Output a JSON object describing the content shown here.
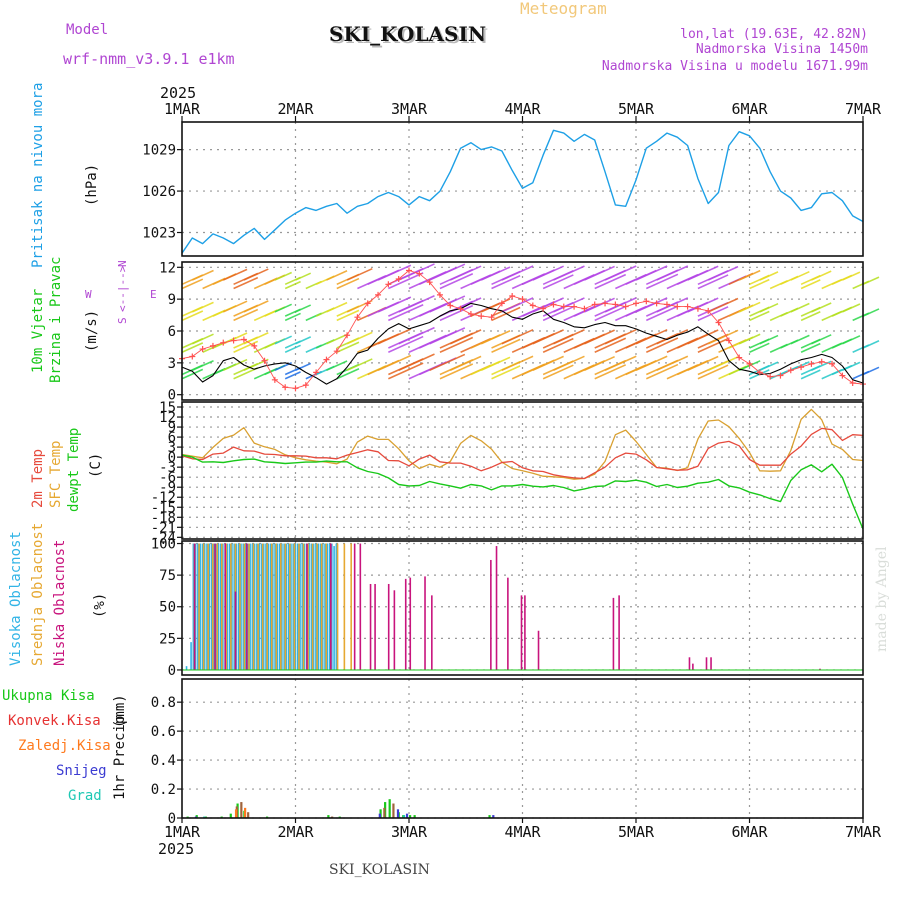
{
  "header": {
    "model_label": "Model",
    "model_name": "wrf-nmm_v3.9.1 e1km",
    "title": "SKI_KOLASIN",
    "subtitle": "Meteogram",
    "lonlat": "lon,lat (19.63E, 42.82N)",
    "altitude": "Nadmorska Visina 1450m",
    "model_altitude": "Nadmorska Visina u modelu 1671.99m"
  },
  "footer": {
    "station": "SKI_KOLASIN",
    "credit": "made by Angel"
  },
  "colors": {
    "pressure": "#1ea0e6",
    "temp2m": "#e64a3c",
    "sfc_temp": "#d9a030",
    "dewpt": "#19c819",
    "high_cloud": "#32b4e6",
    "mid_cloud": "#e6a832",
    "low_cloud": "#c8147d",
    "wind_speed": "#000000",
    "gust": "#ff5050",
    "total_rain": "#19c819",
    "conv_rain": "#e63232",
    "freezing": "#ff7a1e",
    "snow": "#3c3cd2",
    "hail": "#1ec8b4",
    "wind_axis": "#b046d2"
  },
  "chart_data": [
    {
      "type": "line",
      "panel": "pressure",
      "ylabel": "Pritisak na nivou mora",
      "unit": "(hPa)",
      "x_top_year": "2025",
      "x_tick_labels": [
        "1MAR",
        "2MAR",
        "3MAR",
        "4MAR",
        "5MAR",
        "6MAR",
        "7MAR"
      ],
      "y_ticks": [
        1023,
        1026,
        1029
      ],
      "ylim": [
        1021.3,
        1031
      ],
      "series": [
        {
          "values": [
            1021.5,
            1022.6,
            1022.2,
            1022.9,
            1022.6,
            1022.2,
            1022.8,
            1023.3,
            1022.5,
            1023.2,
            1023.9,
            1024.4,
            1024.8,
            1024.6,
            1024.9,
            1025.1,
            1024.4,
            1024.9,
            1025.1,
            1025.6,
            1025.9,
            1025.6,
            1025.0,
            1025.6,
            1025.3,
            1026.0,
            1027.4,
            1029.1,
            1029.5,
            1029.0,
            1029.2,
            1028.9,
            1027.5,
            1026.2,
            1026.6,
            1028.6,
            1030.4,
            1030.2,
            1029.6,
            1030.1,
            1029.7,
            1027.4,
            1025.0,
            1024.9,
            1026.8,
            1029.1,
            1029.6,
            1030.2,
            1029.9,
            1029.3,
            1026.9,
            1025.1,
            1025.9,
            1029.3,
            1030.3,
            1030.0,
            1029.1,
            1027.4,
            1026.0,
            1025.5,
            1024.6,
            1024.8,
            1025.8,
            1025.9,
            1025.3,
            1024.2,
            1023.8
          ]
        }
      ]
    },
    {
      "type": "line",
      "panel": "wind",
      "ylabel": [
        "10m Vjetar",
        "Brzina i Pravac"
      ],
      "unit": "(m/s)",
      "compass": [
        "N",
        "W",
        "E",
        "S"
      ],
      "y_ticks": [
        0,
        3,
        6,
        9,
        12
      ],
      "ylim": [
        -0.5,
        12.5
      ],
      "series": [
        {
          "values": [
            2.6,
            2.2,
            1.2,
            1.8,
            3.2,
            3.5,
            2.8,
            2.4,
            2.7,
            2.9,
            3.0,
            2.7,
            2.1,
            1.6,
            1.0,
            1.5,
            2.6,
            3.9,
            4.2,
            5.3,
            6.2,
            6.7,
            6.2,
            6.5,
            6.8,
            7.4,
            7.9,
            8.1,
            8.6,
            8.4,
            8.1,
            7.9,
            7.3,
            7.1,
            7.6,
            7.9,
            7.1,
            6.8,
            6.4,
            6.3,
            6.6,
            6.8,
            6.5,
            6.5,
            6.2,
            5.8,
            5.5,
            5.2,
            5.6,
            5.9,
            6.4,
            5.7,
            5.1,
            3.2,
            2.4,
            2.2,
            1.9,
            2.0,
            2.4,
            2.9,
            3.3,
            3.5,
            3.8,
            3.5,
            2.7,
            1.4,
            1.1
          ]
        },
        {
          "values": [
            3.4,
            3.6,
            4.3,
            4.6,
            4.9,
            5.1,
            5.2,
            4.6,
            3.2,
            1.4,
            0.7,
            0.6,
            0.9,
            2.1,
            3.3,
            4.1,
            5.6,
            7.3,
            8.6,
            9.4,
            10.4,
            10.9,
            11.7,
            11.4,
            10.6,
            9.4,
            8.4,
            8.1,
            7.6,
            7.4,
            7.3,
            8.6,
            9.3,
            9.0,
            8.4,
            8.1,
            8.5,
            8.3,
            8.3,
            8.1,
            8.5,
            8.6,
            8.5,
            8.3,
            8.6,
            8.8,
            8.6,
            8.5,
            8.3,
            8.3,
            8.1,
            7.9,
            6.8,
            5.1,
            3.5,
            2.9,
            2.1,
            1.7,
            1.8,
            2.3,
            2.6,
            2.9,
            3.1,
            2.9,
            1.8,
            1.1,
            1.0
          ]
        }
      ]
    },
    {
      "type": "line",
      "panel": "temperature",
      "ylabel": [
        "2m Temp",
        "SFC Temp",
        "dewpt Temp"
      ],
      "unit": "(C)",
      "y_ticks": [
        15,
        12,
        9,
        6,
        3,
        0,
        -3,
        -6,
        -9,
        -12,
        -15,
        -18,
        -21,
        -24
      ],
      "ylim": [
        -24.5,
        16.5
      ],
      "series": [
        {
          "values": [
            0.4,
            -0.5,
            -0.7,
            0.9,
            1.2,
            3.0,
            1.9,
            1.8,
            0.9,
            0.8,
            0.4,
            0.4,
            0.3,
            -0.2,
            -0.2,
            -0.5,
            0.6,
            1.4,
            2.2,
            1.6,
            -1.0,
            -1.1,
            -2.6,
            -0.6,
            0.6,
            -1.4,
            -1.8,
            -1.8,
            -2.7,
            -4.1,
            -3.0,
            -1.6,
            -1.3,
            -3.2,
            -4.1,
            -4.3,
            -5.3,
            -5.8,
            -6.2,
            -6.4,
            -4.7,
            -3.0,
            -0.2,
            1.2,
            0.9,
            -0.8,
            -3.1,
            -3.5,
            -3.9,
            -3.8,
            -2.7,
            2.6,
            4.2,
            4.7,
            3.4,
            -0.7,
            -2.4,
            -2.4,
            -2.4,
            0.9,
            3.3,
            6.8,
            8.6,
            8.2,
            5.0,
            6.7,
            6.5
          ]
        },
        {
          "values": [
            0.8,
            0.3,
            -0.2,
            2.9,
            5.6,
            6.6,
            8.8,
            4.2,
            3.1,
            2.3,
            0.7,
            -0.2,
            -0.8,
            -1.2,
            -1.5,
            -2.0,
            -0.6,
            4.5,
            6.3,
            5.3,
            5.3,
            2.5,
            -1.1,
            -3.4,
            -2.1,
            -3.0,
            -1.3,
            4.1,
            6.5,
            4.9,
            2.4,
            -1.5,
            -3.4,
            -4.1,
            -4.8,
            -5.7,
            -5.9,
            -6.1,
            -6.6,
            -6.4,
            -5.1,
            -1.3,
            6.7,
            8.1,
            4.7,
            0.8,
            -3.1,
            -3.3,
            -4.0,
            -3.2,
            5.4,
            10.8,
            11.1,
            9.1,
            5.6,
            1.4,
            -4.1,
            -4.2,
            -4.1,
            2.0,
            11.3,
            14.3,
            11.2,
            3.9,
            2.3,
            -0.7,
            -1.0
          ]
        },
        {
          "values": [
            0.6,
            0.0,
            -1.5,
            -1.4,
            -1.6,
            -1.1,
            -0.7,
            -0.6,
            -1.4,
            -1.6,
            -1.9,
            -1.7,
            -1.5,
            -1.5,
            -1.2,
            -1.4,
            -1.4,
            -3.2,
            -4.3,
            -4.9,
            -6.2,
            -8.2,
            -8.6,
            -8.5,
            -7.3,
            -8.0,
            -8.6,
            -9.3,
            -8.2,
            -8.6,
            -9.8,
            -8.6,
            -8.6,
            -8.2,
            -8.7,
            -8.9,
            -8.5,
            -9.1,
            -10.1,
            -9.5,
            -8.8,
            -8.6,
            -7.1,
            -7.3,
            -6.9,
            -7.5,
            -8.8,
            -8.2,
            -9.1,
            -8.7,
            -7.8,
            -7.5,
            -6.7,
            -8.6,
            -9.2,
            -10.5,
            -11.3,
            -12.4,
            -13.3,
            -7.0,
            -3.8,
            -2.3,
            -4.4,
            -2.1,
            -6.1,
            -14.1,
            -21.5
          ]
        }
      ]
    },
    {
      "type": "bar",
      "panel": "cloud",
      "ylabel": [
        "Visoka Oblacnost",
        "Srednja Oblacnost",
        "Niska Oblacnost"
      ],
      "unit": "(%)",
      "y_ticks": [
        0,
        25,
        50,
        75,
        100
      ],
      "ylim": [
        -4,
        102
      ],
      "high_cloud": [
        [
          0.04,
          3
        ],
        [
          0.08,
          22
        ],
        [
          0.1,
          100
        ],
        [
          0.12,
          100
        ],
        [
          0.14,
          100
        ],
        [
          0.16,
          100
        ],
        [
          0.18,
          100
        ],
        [
          0.2,
          100
        ],
        [
          0.22,
          100
        ],
        [
          0.24,
          100
        ],
        [
          0.26,
          100
        ],
        [
          0.28,
          100
        ],
        [
          0.3,
          100
        ],
        [
          0.32,
          100
        ],
        [
          0.34,
          100
        ],
        [
          0.36,
          100
        ],
        [
          0.38,
          100
        ],
        [
          0.4,
          100
        ],
        [
          0.42,
          100
        ],
        [
          0.44,
          100
        ],
        [
          0.46,
          100
        ],
        [
          0.48,
          100
        ],
        [
          0.5,
          100
        ],
        [
          0.52,
          100
        ],
        [
          0.54,
          100
        ],
        [
          0.56,
          100
        ],
        [
          0.58,
          100
        ],
        [
          0.6,
          100
        ],
        [
          0.62,
          100
        ],
        [
          0.64,
          100
        ],
        [
          0.66,
          100
        ],
        [
          0.68,
          100
        ],
        [
          0.7,
          100
        ],
        [
          0.72,
          100
        ],
        [
          0.74,
          100
        ],
        [
          0.76,
          100
        ],
        [
          0.78,
          100
        ],
        [
          0.8,
          100
        ],
        [
          0.82,
          100
        ],
        [
          0.84,
          100
        ],
        [
          0.86,
          100
        ],
        [
          0.88,
          100
        ],
        [
          0.9,
          100
        ],
        [
          0.92,
          100
        ],
        [
          0.94,
          100
        ],
        [
          0.96,
          100
        ],
        [
          0.98,
          100
        ],
        [
          1.0,
          100
        ],
        [
          1.02,
          100
        ],
        [
          1.04,
          100
        ],
        [
          1.06,
          100
        ],
        [
          1.08,
          100
        ],
        [
          1.1,
          100
        ],
        [
          1.12,
          100
        ],
        [
          1.14,
          100
        ],
        [
          1.16,
          100
        ],
        [
          1.18,
          100
        ],
        [
          1.2,
          100
        ],
        [
          1.22,
          100
        ],
        [
          1.24,
          100
        ],
        [
          1.26,
          100
        ],
        [
          1.28,
          100
        ],
        [
          1.3,
          100
        ],
        [
          1.32,
          100
        ],
        [
          1.34,
          98
        ],
        [
          1.36,
          100
        ]
      ],
      "mid_cloud": [
        [
          0.1,
          100
        ],
        [
          0.14,
          100
        ],
        [
          0.18,
          100
        ],
        [
          0.22,
          100
        ],
        [
          0.26,
          100
        ],
        [
          0.3,
          100
        ],
        [
          0.34,
          100
        ],
        [
          0.38,
          100
        ],
        [
          0.42,
          100
        ],
        [
          0.46,
          100
        ],
        [
          0.5,
          100
        ],
        [
          0.54,
          100
        ],
        [
          0.58,
          100
        ],
        [
          0.62,
          100
        ],
        [
          0.66,
          100
        ],
        [
          0.7,
          100
        ],
        [
          0.74,
          100
        ],
        [
          0.78,
          100
        ],
        [
          0.82,
          100
        ],
        [
          0.86,
          100
        ],
        [
          0.9,
          100
        ],
        [
          0.94,
          100
        ],
        [
          0.98,
          100
        ],
        [
          1.02,
          100
        ],
        [
          1.06,
          100
        ],
        [
          1.1,
          100
        ],
        [
          1.14,
          100
        ],
        [
          1.18,
          100
        ],
        [
          1.22,
          100
        ],
        [
          1.26,
          100
        ],
        [
          1.3,
          82
        ],
        [
          1.36,
          100
        ],
        [
          1.42,
          100
        ],
        [
          1.48,
          100
        ]
      ],
      "low_cloud": [
        [
          0.09,
          100
        ],
        [
          0.27,
          100
        ],
        [
          0.36,
          100
        ],
        [
          0.45,
          62
        ],
        [
          0.55,
          100
        ],
        [
          1.08,
          100
        ],
        [
          1.29,
          100
        ],
        [
          1.5,
          100
        ],
        [
          1.55,
          100
        ],
        [
          1.64,
          68
        ],
        [
          1.68,
          68
        ],
        [
          1.8,
          68
        ],
        [
          1.85,
          63
        ],
        [
          1.95,
          72
        ],
        [
          1.99,
          73
        ],
        [
          2.12,
          74
        ],
        [
          2.18,
          59
        ],
        [
          2.7,
          87
        ],
        [
          2.75,
          98
        ],
        [
          2.85,
          73
        ],
        [
          2.97,
          59
        ],
        [
          3.0,
          59
        ],
        [
          3.12,
          31
        ],
        [
          3.78,
          57
        ],
        [
          3.83,
          59
        ],
        [
          4.45,
          10
        ],
        [
          4.48,
          5
        ],
        [
          4.6,
          10
        ],
        [
          4.64,
          10
        ],
        [
          5.6,
          1
        ]
      ]
    },
    {
      "type": "bar",
      "panel": "precip",
      "ylabel": "1hr Precip",
      "unit": "(mm)",
      "legend": [
        "Ukupna Kisa",
        "Konvek.Kisa",
        "Zaledj.Kisa",
        "Snijeg",
        "Grad"
      ],
      "x_bottom_year": "2025",
      "y_ticks": [
        0,
        0.2,
        0.4,
        0.6,
        0.8
      ],
      "ylim": [
        0,
        0.96
      ],
      "total_rain": [
        [
          0.04,
          0.01
        ],
        [
          0.12,
          0.02
        ],
        [
          0.2,
          0.01
        ],
        [
          0.34,
          0.01
        ],
        [
          0.42,
          0.03
        ],
        [
          0.48,
          0.1
        ],
        [
          0.54,
          0.05
        ],
        [
          0.74,
          0.01
        ],
        [
          1.28,
          0.02
        ],
        [
          1.38,
          0.01
        ],
        [
          1.74,
          0.06
        ],
        [
          1.78,
          0.11
        ],
        [
          1.82,
          0.13
        ],
        [
          1.9,
          0.04
        ],
        [
          1.94,
          0.02
        ],
        [
          2.0,
          0.02
        ],
        [
          2.04,
          0.02
        ],
        [
          2.7,
          0.02
        ]
      ],
      "conv_rain": [
        [
          0.46,
          0.08
        ],
        [
          0.5,
          0.11
        ],
        [
          0.56,
          0.04
        ],
        [
          1.3,
          0.01
        ],
        [
          1.76,
          0.07
        ],
        [
          1.84,
          0.1
        ]
      ],
      "freezing": [
        [
          0.44,
          0.06
        ],
        [
          0.52,
          0.07
        ]
      ],
      "snow": [
        [
          0.1,
          0.01
        ],
        [
          1.72,
          0.03
        ],
        [
          1.88,
          0.06
        ],
        [
          1.96,
          0.03
        ],
        [
          2.72,
          0.02
        ]
      ],
      "hail": [
        [
          0.16,
          0.01
        ],
        [
          1.92,
          0.02
        ]
      ]
    }
  ]
}
